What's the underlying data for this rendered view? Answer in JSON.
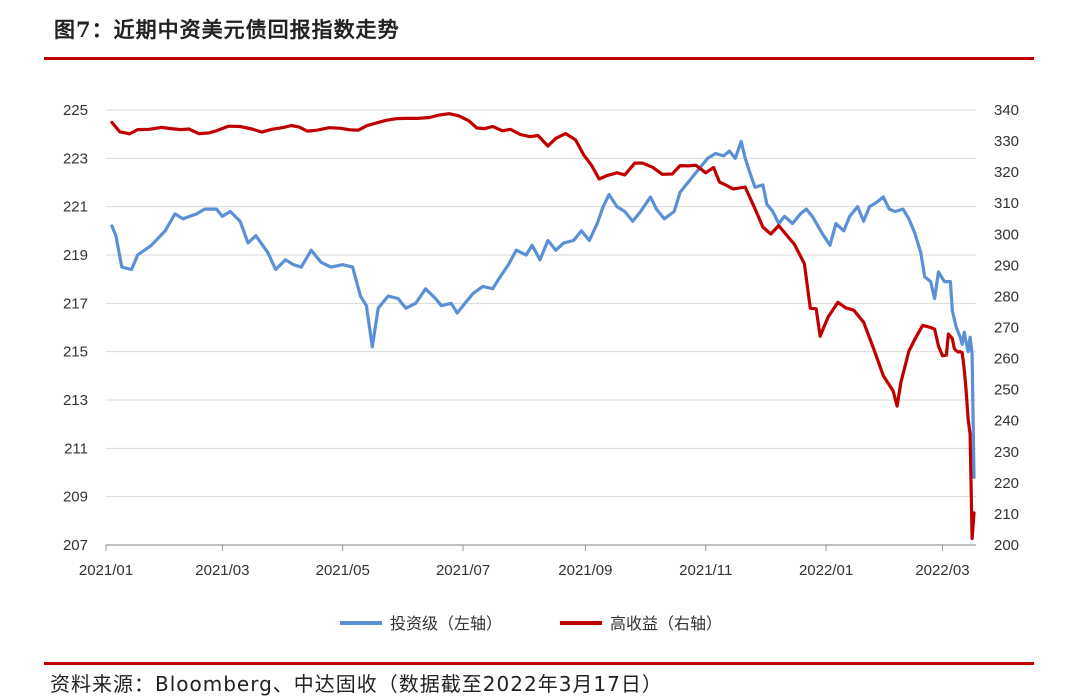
{
  "header": {
    "title": "图7：近期中资美元债回报指数走势"
  },
  "footer": {
    "source": "资料来源：Bloomberg、中达固收（数据截至2022年3月17日）"
  },
  "chart_data": {
    "type": "line",
    "title": "图7：近期中资美元债回报指数走势",
    "x_tick_labels": [
      "2021/01",
      "2021/03",
      "2021/05",
      "2021/07",
      "2021/09",
      "2021/11",
      "2022/01",
      "2022/03"
    ],
    "x_range": [
      "2021-01-01",
      "2022-03-18"
    ],
    "y_left": {
      "ticks": [
        225,
        223,
        221,
        219,
        217,
        215,
        213,
        211,
        209,
        207
      ],
      "ylim": [
        207,
        225
      ]
    },
    "y_right": {
      "ticks": [
        340,
        330,
        320,
        310,
        300,
        290,
        280,
        270,
        260,
        250,
        240,
        230,
        220,
        210,
        200
      ],
      "ylim": [
        200,
        340
      ]
    },
    "grid": "horizontal",
    "legend_position": "bottom",
    "series": [
      {
        "name": "投资级（左轴）",
        "axis": "left",
        "color": "#5b8fd6",
        "points": [
          [
            "2021-01-04",
            220.2
          ],
          [
            "2021-01-06",
            219.8
          ],
          [
            "2021-01-09",
            218.5
          ],
          [
            "2021-01-14",
            218.4
          ],
          [
            "2021-01-17",
            219.0
          ],
          [
            "2021-01-24",
            219.4
          ],
          [
            "2021-01-31",
            220.0
          ],
          [
            "2021-02-05",
            220.7
          ],
          [
            "2021-02-09",
            220.5
          ],
          [
            "2021-02-16",
            220.7
          ],
          [
            "2021-02-20",
            220.9
          ],
          [
            "2021-02-26",
            220.9
          ],
          [
            "2021-03-01",
            220.6
          ],
          [
            "2021-03-05",
            220.8
          ],
          [
            "2021-03-10",
            220.4
          ],
          [
            "2021-03-14",
            219.5
          ],
          [
            "2021-03-18",
            219.8
          ],
          [
            "2021-03-24",
            219.1
          ],
          [
            "2021-03-28",
            218.4
          ],
          [
            "2021-04-02",
            218.8
          ],
          [
            "2021-04-06",
            218.6
          ],
          [
            "2021-04-10",
            218.5
          ],
          [
            "2021-04-15",
            219.2
          ],
          [
            "2021-04-20",
            218.7
          ],
          [
            "2021-04-25",
            218.5
          ],
          [
            "2021-05-01",
            218.6
          ],
          [
            "2021-05-06",
            218.5
          ],
          [
            "2021-05-10",
            217.3
          ],
          [
            "2021-05-13",
            216.9
          ],
          [
            "2021-05-16",
            215.2
          ],
          [
            "2021-05-19",
            216.8
          ],
          [
            "2021-05-24",
            217.3
          ],
          [
            "2021-05-29",
            217.2
          ],
          [
            "2021-06-02",
            216.8
          ],
          [
            "2021-06-07",
            217.0
          ],
          [
            "2021-06-12",
            217.6
          ],
          [
            "2021-06-17",
            217.2
          ],
          [
            "2021-06-20",
            216.9
          ],
          [
            "2021-06-25",
            217.0
          ],
          [
            "2021-06-28",
            216.6
          ],
          [
            "2021-07-02",
            217.0
          ],
          [
            "2021-07-06",
            217.4
          ],
          [
            "2021-07-11",
            217.7
          ],
          [
            "2021-07-16",
            217.6
          ],
          [
            "2021-07-19",
            218.0
          ],
          [
            "2021-07-24",
            218.6
          ],
          [
            "2021-07-28",
            219.2
          ],
          [
            "2021-08-02",
            219.0
          ],
          [
            "2021-08-05",
            219.4
          ],
          [
            "2021-08-09",
            218.8
          ],
          [
            "2021-08-13",
            219.6
          ],
          [
            "2021-08-17",
            219.2
          ],
          [
            "2021-08-21",
            219.5
          ],
          [
            "2021-08-26",
            219.6
          ],
          [
            "2021-08-30",
            220.0
          ],
          [
            "2021-09-03",
            219.6
          ],
          [
            "2021-09-07",
            220.3
          ],
          [
            "2021-09-10",
            221.0
          ],
          [
            "2021-09-13",
            221.5
          ],
          [
            "2021-09-17",
            221.0
          ],
          [
            "2021-09-21",
            220.8
          ],
          [
            "2021-09-25",
            220.4
          ],
          [
            "2021-09-29",
            220.8
          ],
          [
            "2021-10-04",
            221.4
          ],
          [
            "2021-10-07",
            220.9
          ],
          [
            "2021-10-11",
            220.5
          ],
          [
            "2021-10-16",
            220.8
          ],
          [
            "2021-10-19",
            221.6
          ],
          [
            "2021-10-24",
            222.1
          ],
          [
            "2021-10-28",
            222.5
          ],
          [
            "2021-11-02",
            223.0
          ],
          [
            "2021-11-06",
            223.2
          ],
          [
            "2021-11-10",
            223.1
          ],
          [
            "2021-11-13",
            223.3
          ],
          [
            "2021-11-16",
            223.0
          ],
          [
            "2021-11-19",
            223.7
          ],
          [
            "2021-11-21",
            223.0
          ],
          [
            "2021-11-23",
            222.5
          ],
          [
            "2021-11-26",
            221.8
          ],
          [
            "2021-11-30",
            221.9
          ],
          [
            "2021-12-02",
            221.1
          ],
          [
            "2021-12-05",
            220.8
          ],
          [
            "2021-12-08",
            220.3
          ],
          [
            "2021-12-11",
            220.6
          ],
          [
            "2021-12-15",
            220.3
          ],
          [
            "2021-12-19",
            220.7
          ],
          [
            "2021-12-22",
            220.9
          ],
          [
            "2021-12-25",
            220.6
          ],
          [
            "2021-12-30",
            219.9
          ],
          [
            "2022-01-03",
            219.4
          ],
          [
            "2022-01-06",
            220.3
          ],
          [
            "2022-01-10",
            220.0
          ],
          [
            "2022-01-13",
            220.6
          ],
          [
            "2022-01-17",
            221.0
          ],
          [
            "2022-01-20",
            220.4
          ],
          [
            "2022-01-23",
            221.0
          ],
          [
            "2022-01-27",
            221.2
          ],
          [
            "2022-01-30",
            221.4
          ],
          [
            "2022-02-02",
            220.9
          ],
          [
            "2022-02-05",
            220.8
          ],
          [
            "2022-02-09",
            220.9
          ],
          [
            "2022-02-12",
            220.5
          ],
          [
            "2022-02-15",
            219.9
          ],
          [
            "2022-02-18",
            219.1
          ],
          [
            "2022-02-20",
            218.1
          ],
          [
            "2022-02-23",
            217.9
          ],
          [
            "2022-02-25",
            217.2
          ],
          [
            "2022-02-27",
            218.3
          ],
          [
            "2022-03-02",
            217.9
          ],
          [
            "2022-03-05",
            217.9
          ],
          [
            "2022-03-06",
            216.7
          ],
          [
            "2022-03-08",
            216.0
          ],
          [
            "2022-03-10",
            215.6
          ],
          [
            "2022-03-11",
            215.3
          ],
          [
            "2022-03-12",
            215.8
          ],
          [
            "2022-03-13",
            215.4
          ],
          [
            "2022-03-14",
            215.0
          ],
          [
            "2022-03-15",
            215.6
          ],
          [
            "2022-03-16",
            214.9
          ],
          [
            "2022-03-17",
            209.8
          ]
        ]
      },
      {
        "name": "高收益（右轴）",
        "axis": "right",
        "color": "#c00000",
        "points": [
          [
            "2021-01-04",
            336.0
          ],
          [
            "2021-01-08",
            333.0
          ],
          [
            "2021-01-13",
            332.3
          ],
          [
            "2021-01-17",
            333.7
          ],
          [
            "2021-01-23",
            333.8
          ],
          [
            "2021-01-29",
            334.4
          ],
          [
            "2021-02-03",
            334.0
          ],
          [
            "2021-02-08",
            333.7
          ],
          [
            "2021-02-12",
            333.9
          ],
          [
            "2021-02-17",
            332.4
          ],
          [
            "2021-02-22",
            332.6
          ],
          [
            "2021-02-26",
            333.3
          ],
          [
            "2021-03-04",
            334.8
          ],
          [
            "2021-03-10",
            334.7
          ],
          [
            "2021-03-16",
            333.9
          ],
          [
            "2021-03-21",
            332.9
          ],
          [
            "2021-03-26",
            333.8
          ],
          [
            "2021-04-01",
            334.4
          ],
          [
            "2021-04-05",
            335.0
          ],
          [
            "2021-04-09",
            334.5
          ],
          [
            "2021-04-13",
            333.2
          ],
          [
            "2021-04-18",
            333.5
          ],
          [
            "2021-04-24",
            334.3
          ],
          [
            "2021-04-30",
            334.1
          ],
          [
            "2021-05-05",
            333.6
          ],
          [
            "2021-05-09",
            333.5
          ],
          [
            "2021-05-13",
            334.9
          ],
          [
            "2021-05-18",
            335.8
          ],
          [
            "2021-05-23",
            336.7
          ],
          [
            "2021-05-28",
            337.2
          ],
          [
            "2021-06-02",
            337.3
          ],
          [
            "2021-06-08",
            337.3
          ],
          [
            "2021-06-14",
            337.6
          ],
          [
            "2021-06-19",
            338.4
          ],
          [
            "2021-06-24",
            338.8
          ],
          [
            "2021-06-29",
            338.1
          ],
          [
            "2021-07-04",
            336.5
          ],
          [
            "2021-07-08",
            334.2
          ],
          [
            "2021-07-12",
            334.0
          ],
          [
            "2021-07-16",
            334.7
          ],
          [
            "2021-07-21",
            333.3
          ],
          [
            "2021-07-25",
            333.8
          ],
          [
            "2021-07-30",
            332.1
          ],
          [
            "2021-08-04",
            331.4
          ],
          [
            "2021-08-08",
            331.8
          ],
          [
            "2021-08-13",
            328.4
          ],
          [
            "2021-08-17",
            330.9
          ],
          [
            "2021-08-22",
            332.4
          ],
          [
            "2021-08-27",
            330.4
          ],
          [
            "2021-08-31",
            325.7
          ],
          [
            "2021-09-04",
            322.3
          ],
          [
            "2021-09-08",
            317.8
          ],
          [
            "2021-09-12",
            318.9
          ],
          [
            "2021-09-17",
            319.8
          ],
          [
            "2021-09-21",
            319.1
          ],
          [
            "2021-09-26",
            322.9
          ],
          [
            "2021-09-30",
            322.9
          ],
          [
            "2021-10-05",
            321.6
          ],
          [
            "2021-10-10",
            319.3
          ],
          [
            "2021-10-15",
            319.4
          ],
          [
            "2021-10-19",
            322.1
          ],
          [
            "2021-10-23",
            322.0
          ],
          [
            "2021-10-27",
            322.2
          ],
          [
            "2021-11-01",
            319.8
          ],
          [
            "2021-11-05",
            321.5
          ],
          [
            "2021-11-08",
            316.8
          ],
          [
            "2021-11-11",
            315.9
          ],
          [
            "2021-11-15",
            314.6
          ],
          [
            "2021-11-21",
            315.2
          ],
          [
            "2021-11-26",
            308.2
          ],
          [
            "2021-11-30",
            302.3
          ],
          [
            "2021-12-04",
            300.1
          ],
          [
            "2021-12-08",
            302.8
          ],
          [
            "2021-12-11",
            300.5
          ],
          [
            "2021-12-16",
            296.7
          ],
          [
            "2021-12-21",
            290.5
          ],
          [
            "2021-12-24",
            276.2
          ],
          [
            "2021-12-27",
            276.0
          ],
          [
            "2021-12-29",
            267.2
          ],
          [
            "2022-01-02",
            273.3
          ],
          [
            "2022-01-07",
            278.1
          ],
          [
            "2022-01-11",
            276.3
          ],
          [
            "2022-01-15",
            275.6
          ],
          [
            "2022-01-20",
            271.7
          ],
          [
            "2022-01-25",
            263.4
          ],
          [
            "2022-01-30",
            254.5
          ],
          [
            "2022-02-04",
            249.6
          ],
          [
            "2022-02-06",
            244.7
          ],
          [
            "2022-02-08",
            252.5
          ],
          [
            "2022-02-12",
            262.4
          ],
          [
            "2022-02-15",
            266.2
          ],
          [
            "2022-02-19",
            270.7
          ],
          [
            "2022-02-23",
            270.0
          ],
          [
            "2022-02-25",
            269.5
          ],
          [
            "2022-02-27",
            264.0
          ],
          [
            "2022-03-01",
            260.9
          ],
          [
            "2022-03-03",
            261.1
          ],
          [
            "2022-03-04",
            267.9
          ],
          [
            "2022-03-06",
            266.5
          ],
          [
            "2022-03-07",
            263.2
          ],
          [
            "2022-03-08",
            262.5
          ],
          [
            "2022-03-09",
            262.1
          ],
          [
            "2022-03-10",
            262.2
          ],
          [
            "2022-03-11",
            261.9
          ],
          [
            "2022-03-12",
            256.6
          ],
          [
            "2022-03-13",
            249.8
          ],
          [
            "2022-03-14",
            240.6
          ],
          [
            "2022-03-15",
            235.7
          ],
          [
            "2022-03-16",
            202.1
          ],
          [
            "2022-03-17",
            210.3
          ]
        ]
      }
    ]
  }
}
